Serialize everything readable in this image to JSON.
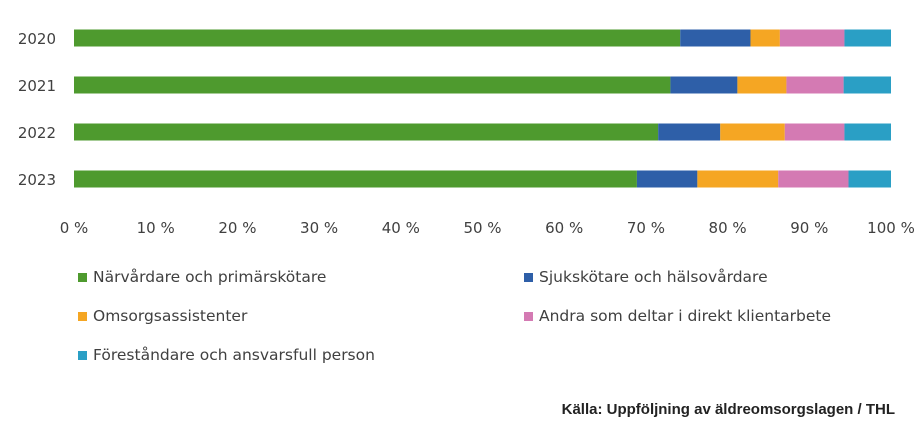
{
  "chart_data": {
    "type": "bar",
    "orientation": "horizontal",
    "stacked": true,
    "percent": true,
    "categories": [
      "2020",
      "2021",
      "2022",
      "2023"
    ],
    "series": [
      {
        "name": "Närvårdare och primärskötare",
        "color": "#4e9a2e",
        "values": [
          74.2,
          73.0,
          71.5,
          68.9
        ]
      },
      {
        "name": "Sjukskötare och hälsovårdare",
        "color": "#2e5fa8",
        "values": [
          8.6,
          8.2,
          7.6,
          7.4
        ]
      },
      {
        "name": "Omsorgsassistenter",
        "color": "#f5a623",
        "values": [
          3.6,
          6.0,
          7.9,
          9.9
        ]
      },
      {
        "name": "Andra som deltar i direkt klientarbete",
        "color": "#d47ab3",
        "values": [
          7.9,
          7.0,
          7.3,
          8.6
        ]
      },
      {
        "name": "Föreståndare och ansvarsfull person",
        "color": "#2a9fc5",
        "values": [
          5.7,
          5.8,
          5.7,
          5.2
        ]
      }
    ],
    "xticks": [
      "0 %",
      "10 %",
      "20 %",
      "30 %",
      "40 %",
      "50 %",
      "60 %",
      "70 %",
      "80 %",
      "90 %",
      "100 %"
    ],
    "xlim": [
      0,
      100
    ],
    "grid": false,
    "legend_position": "bottom"
  },
  "source": "Källa: Uppföljning av äldreomsorgslagen / THL"
}
